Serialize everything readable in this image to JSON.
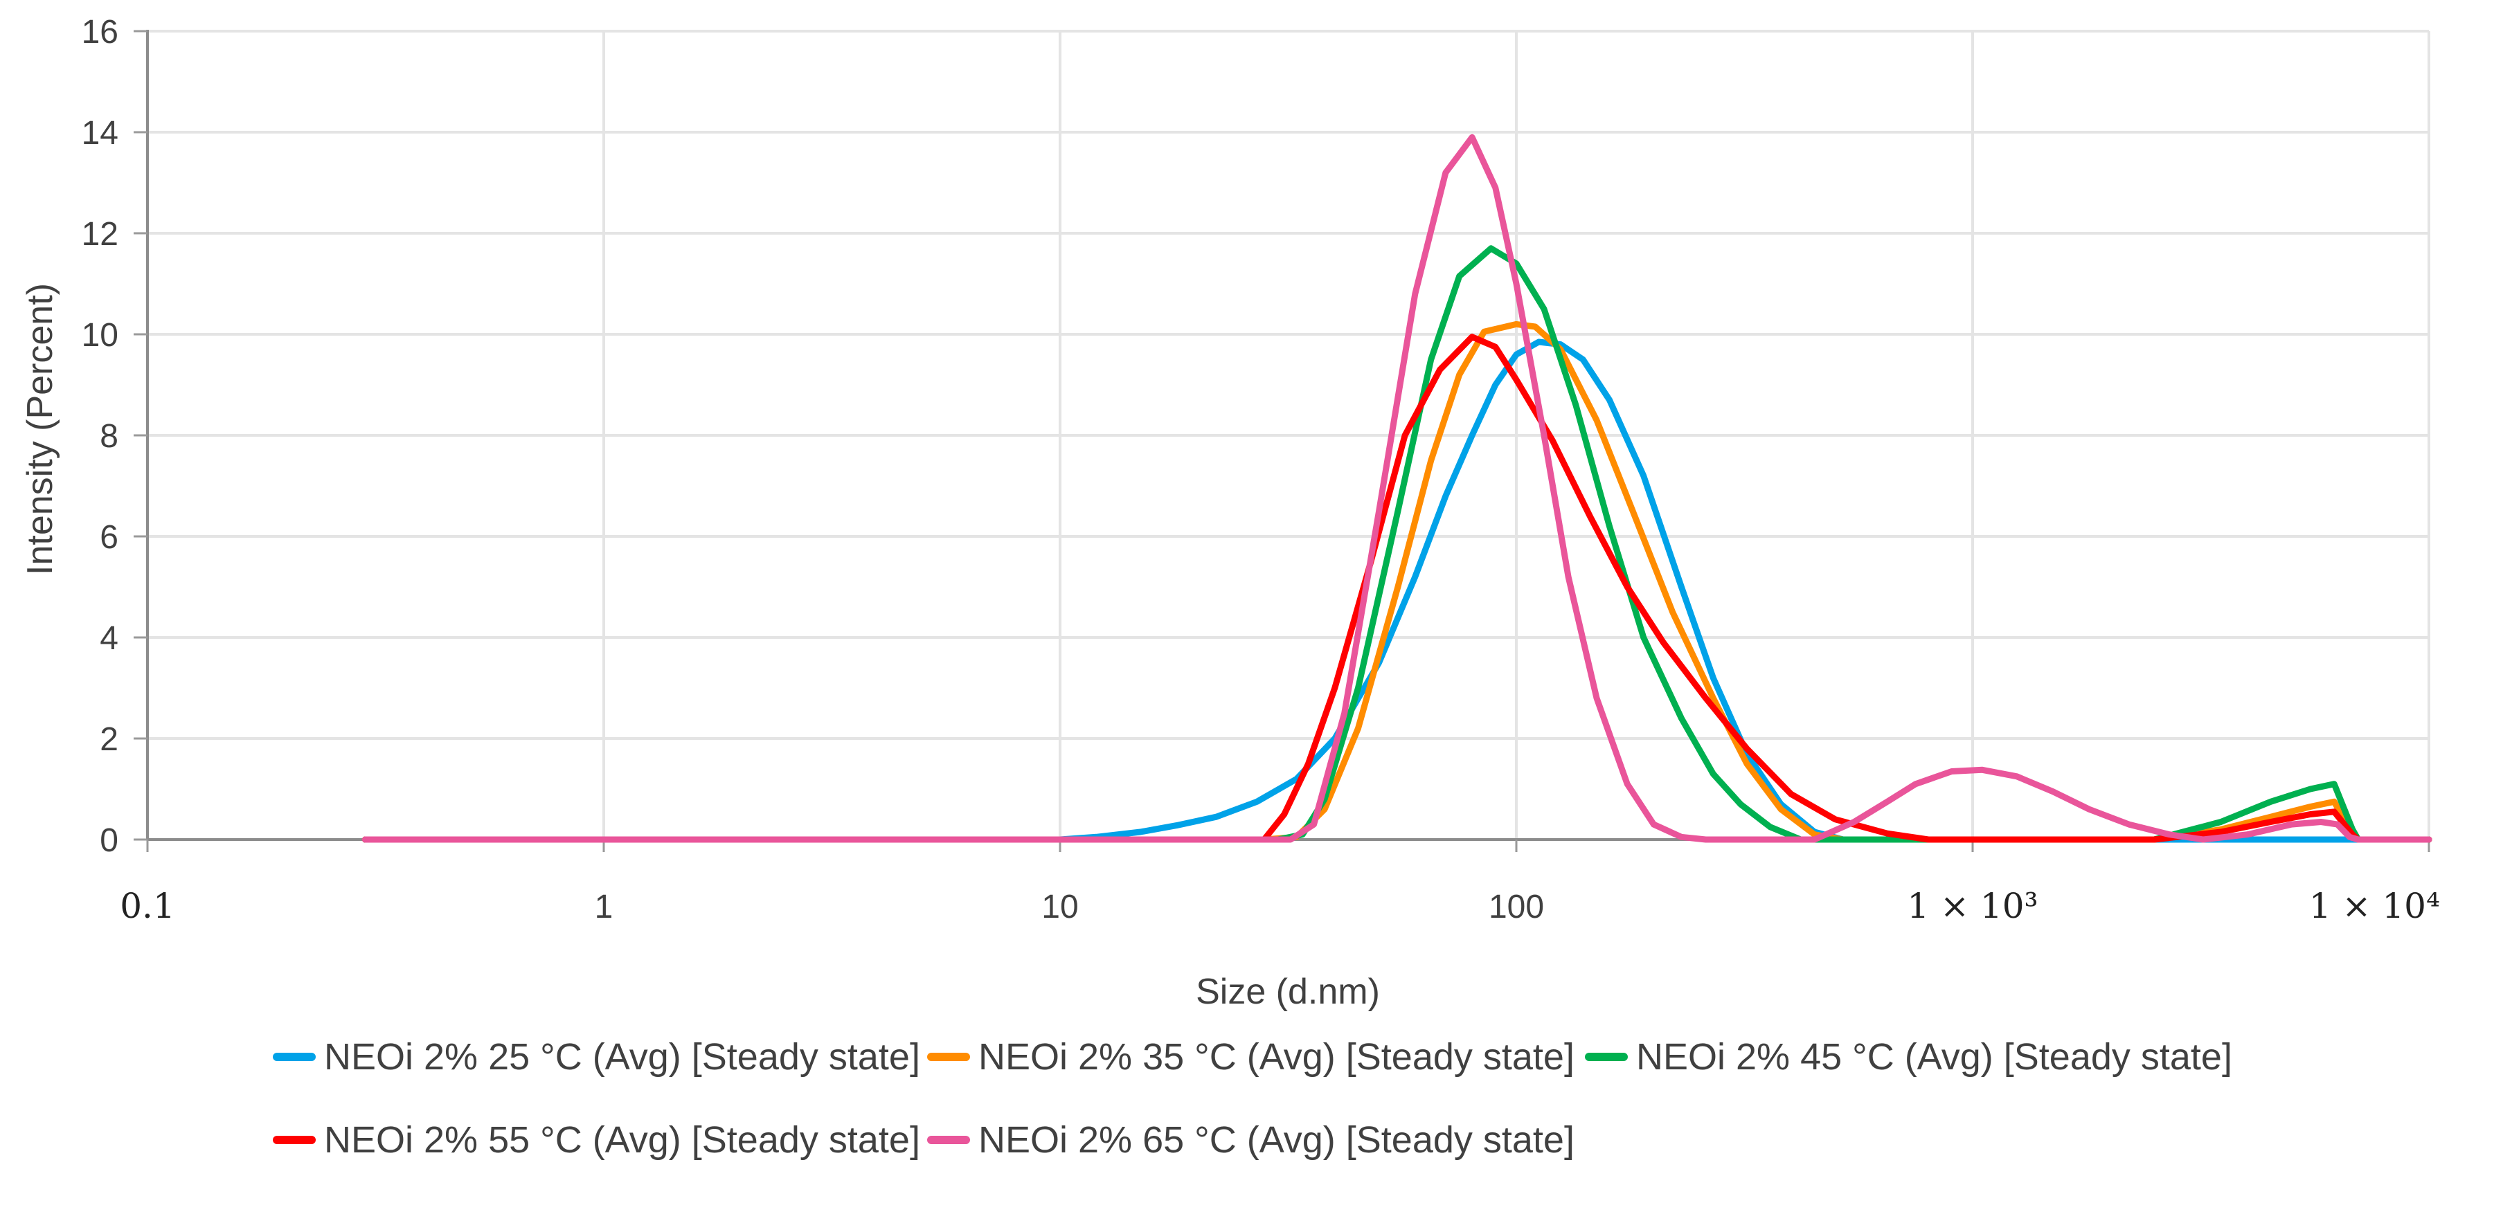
{
  "chart_data": {
    "type": "line",
    "title": "",
    "xlabel": "Size (d.nm)",
    "ylabel": "Intensity (Percent)",
    "xscale": "log",
    "xlim": [
      0.1,
      10000
    ],
    "ylim": [
      0,
      16
    ],
    "grid": true,
    "legend_position": "bottom",
    "y_ticks": [
      {
        "value": 0,
        "label": "0"
      },
      {
        "value": 2,
        "label": "2"
      },
      {
        "value": 4,
        "label": "4"
      },
      {
        "value": 6,
        "label": "6"
      },
      {
        "value": 8,
        "label": "8"
      },
      {
        "value": 10,
        "label": "10"
      },
      {
        "value": 12,
        "label": "12"
      },
      {
        "value": 14,
        "label": "14"
      },
      {
        "value": 16,
        "label": "16"
      }
    ],
    "x_ticks": [
      {
        "value": 0.1,
        "label": "0.1",
        "style": "serif"
      },
      {
        "value": 1,
        "label": "1",
        "style": "sans"
      },
      {
        "value": 10,
        "label": "10",
        "style": "sans"
      },
      {
        "value": 100,
        "label": "100",
        "style": "sans"
      },
      {
        "value": 1000,
        "label": "1 × 10³",
        "style": "serif"
      },
      {
        "value": 10000,
        "label": "1 × 10⁴",
        "style": "serif"
      }
    ],
    "series": [
      {
        "name": "NEOi 2% 25 °C (Avg) [Steady state]",
        "color": "#00A2E8",
        "points": [
          [
            0.3,
            0
          ],
          [
            10,
            0
          ],
          [
            12,
            0.05
          ],
          [
            15,
            0.15
          ],
          [
            18,
            0.28
          ],
          [
            22,
            0.45
          ],
          [
            27,
            0.75
          ],
          [
            33,
            1.2
          ],
          [
            40,
            2.0
          ],
          [
            50,
            3.5
          ],
          [
            60,
            5.2
          ],
          [
            70,
            6.8
          ],
          [
            80,
            8.0
          ],
          [
            90,
            9.0
          ],
          [
            100,
            9.6
          ],
          [
            112,
            9.85
          ],
          [
            125,
            9.8
          ],
          [
            140,
            9.5
          ],
          [
            160,
            8.7
          ],
          [
            190,
            7.2
          ],
          [
            230,
            5.0
          ],
          [
            270,
            3.2
          ],
          [
            320,
            1.7
          ],
          [
            380,
            0.7
          ],
          [
            450,
            0.15
          ],
          [
            520,
            0
          ],
          [
            10000,
            0
          ]
        ]
      },
      {
        "name": "NEOi 2% 35 °C (Avg) [Steady state]",
        "color": "#FF8C00",
        "points": [
          [
            0.3,
            0
          ],
          [
            28,
            0
          ],
          [
            33,
            0.05
          ],
          [
            38,
            0.6
          ],
          [
            45,
            2.2
          ],
          [
            55,
            5.0
          ],
          [
            65,
            7.5
          ],
          [
            75,
            9.2
          ],
          [
            85,
            10.05
          ],
          [
            100,
            10.2
          ],
          [
            110,
            10.15
          ],
          [
            125,
            9.7
          ],
          [
            150,
            8.3
          ],
          [
            180,
            6.5
          ],
          [
            220,
            4.5
          ],
          [
            270,
            2.8
          ],
          [
            320,
            1.5
          ],
          [
            380,
            0.6
          ],
          [
            450,
            0.1
          ],
          [
            520,
            0
          ],
          [
            2500,
            0
          ],
          [
            3500,
            0.2
          ],
          [
            4500,
            0.45
          ],
          [
            5500,
            0.65
          ],
          [
            6200,
            0.75
          ],
          [
            6800,
            0.1
          ],
          [
            7000,
            0
          ],
          [
            10000,
            0
          ]
        ]
      },
      {
        "name": "NEOi 2% 45 °C (Avg) [Steady state]",
        "color": "#00B050",
        "points": [
          [
            0.3,
            0
          ],
          [
            30,
            0
          ],
          [
            34,
            0.1
          ],
          [
            38,
            0.8
          ],
          [
            45,
            3.0
          ],
          [
            55,
            6.5
          ],
          [
            65,
            9.5
          ],
          [
            75,
            11.15
          ],
          [
            88,
            11.7
          ],
          [
            100,
            11.4
          ],
          [
            115,
            10.5
          ],
          [
            135,
            8.6
          ],
          [
            160,
            6.2
          ],
          [
            190,
            4.0
          ],
          [
            230,
            2.4
          ],
          [
            270,
            1.3
          ],
          [
            310,
            0.7
          ],
          [
            360,
            0.25
          ],
          [
            420,
            0
          ],
          [
            2500,
            0
          ],
          [
            3500,
            0.35
          ],
          [
            4500,
            0.75
          ],
          [
            5500,
            1.0
          ],
          [
            6200,
            1.1
          ],
          [
            6800,
            0.2
          ],
          [
            7000,
            0
          ],
          [
            10000,
            0
          ]
        ]
      },
      {
        "name": "NEOi 2% 55 °C (Avg) [Steady state]",
        "color": "#FF0000",
        "points": [
          [
            0.3,
            0
          ],
          [
            28,
            0
          ],
          [
            31,
            0.5
          ],
          [
            35,
            1.5
          ],
          [
            40,
            3.0
          ],
          [
            48,
            5.5
          ],
          [
            57,
            8.0
          ],
          [
            68,
            9.3
          ],
          [
            80,
            9.95
          ],
          [
            90,
            9.75
          ],
          [
            100,
            9.1
          ],
          [
            120,
            7.9
          ],
          [
            145,
            6.4
          ],
          [
            175,
            5.0
          ],
          [
            210,
            3.9
          ],
          [
            260,
            2.8
          ],
          [
            320,
            1.8
          ],
          [
            400,
            0.9
          ],
          [
            500,
            0.4
          ],
          [
            650,
            0.12
          ],
          [
            800,
            0
          ],
          [
            2500,
            0
          ],
          [
            3500,
            0.15
          ],
          [
            4500,
            0.35
          ],
          [
            5500,
            0.5
          ],
          [
            6200,
            0.55
          ],
          [
            6800,
            0.1
          ],
          [
            7000,
            0
          ],
          [
            10000,
            0
          ]
        ]
      },
      {
        "name": "NEOi 2% 65 °C (Avg) [Steady state]",
        "color": "#E9559A",
        "points": [
          [
            0.3,
            0
          ],
          [
            32,
            0
          ],
          [
            36,
            0.3
          ],
          [
            42,
            2.5
          ],
          [
            50,
            6.5
          ],
          [
            60,
            10.8
          ],
          [
            70,
            13.2
          ],
          [
            80,
            13.9
          ],
          [
            90,
            12.9
          ],
          [
            100,
            11.0
          ],
          [
            115,
            8.0
          ],
          [
            130,
            5.2
          ],
          [
            150,
            2.8
          ],
          [
            175,
            1.1
          ],
          [
            200,
            0.3
          ],
          [
            230,
            0.05
          ],
          [
            260,
            0
          ],
          [
            450,
            0
          ],
          [
            550,
            0.35
          ],
          [
            650,
            0.75
          ],
          [
            750,
            1.1
          ],
          [
            900,
            1.35
          ],
          [
            1050,
            1.38
          ],
          [
            1250,
            1.25
          ],
          [
            1500,
            0.95
          ],
          [
            1800,
            0.6
          ],
          [
            2200,
            0.3
          ],
          [
            2700,
            0.1
          ],
          [
            3200,
            0
          ],
          [
            4000,
            0.1
          ],
          [
            5000,
            0.3
          ],
          [
            5800,
            0.35
          ],
          [
            6300,
            0.3
          ],
          [
            6700,
            0.05
          ],
          [
            7000,
            0
          ],
          [
            10000,
            0
          ]
        ]
      }
    ]
  }
}
